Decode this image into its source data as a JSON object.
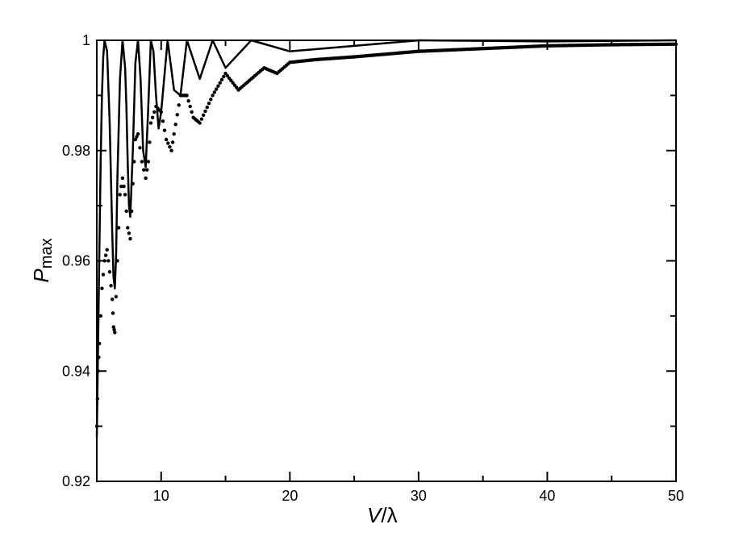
{
  "chart_data": {
    "type": "line",
    "xlabel": {
      "main": "V",
      "sep": "/",
      "symbol": "λ"
    },
    "ylabel": {
      "main": "P",
      "subscript": "max"
    },
    "xlim": [
      5,
      50
    ],
    "ylim": [
      0.92,
      1.0
    ],
    "xticks": [
      10,
      20,
      30,
      40,
      50
    ],
    "xtick_labels": [
      "10",
      "20",
      "30",
      "40",
      "50"
    ],
    "x_minor_ticks": [
      15,
      25,
      35,
      45
    ],
    "yticks": [
      0.92,
      0.94,
      0.96,
      0.98,
      1.0
    ],
    "ytick_labels": [
      "0.92",
      "0.94",
      "0.96",
      "0.98",
      "1"
    ],
    "y_minor_ticks": [
      0.93,
      0.95,
      0.97,
      0.99
    ],
    "grid": false,
    "legend": "none",
    "series": [
      {
        "style": "solid",
        "color": "#000000",
        "description": "oscillating curve touching 1 at maxima",
        "x": [
          5.0,
          5.1,
          5.2,
          5.3,
          5.4,
          5.5,
          5.6,
          5.8,
          6.0,
          6.1,
          6.2,
          6.3,
          6.4,
          6.5,
          6.6,
          6.8,
          7.0,
          7.2,
          7.3,
          7.4,
          7.5,
          7.6,
          7.8,
          8.0,
          8.2,
          8.4,
          8.6,
          8.8,
          9.0,
          9.2,
          9.4,
          9.6,
          9.8,
          10.0,
          10.5,
          11.0,
          11.5,
          12.0,
          13.0,
          14.0,
          15.0,
          17.0,
          20.0,
          25.0,
          30.0,
          40.0,
          50.0
        ],
        "y": [
          0.928,
          0.945,
          0.962,
          0.978,
          0.99,
          0.997,
          1.0,
          0.998,
          0.985,
          0.975,
          0.965,
          0.957,
          0.955,
          0.961,
          0.975,
          0.993,
          1.0,
          0.995,
          0.988,
          0.978,
          0.97,
          0.968,
          0.98,
          0.996,
          1.0,
          0.993,
          0.98,
          0.977,
          0.988,
          1.0,
          0.998,
          0.99,
          0.984,
          0.987,
          1.0,
          0.991,
          0.99,
          1.0,
          0.993,
          1.0,
          0.995,
          1.0,
          0.998,
          0.999,
          1.0,
          0.9998,
          1.0
        ]
      },
      {
        "style": "dotted",
        "color": "#000000",
        "description": "dotted envelope with lower minima",
        "x": [
          5.0,
          5.1,
          5.2,
          5.4,
          5.6,
          5.8,
          6.0,
          6.2,
          6.3,
          6.4,
          6.6,
          6.8,
          7.0,
          7.2,
          7.4,
          7.6,
          7.8,
          8.0,
          8.2,
          8.5,
          8.8,
          9.0,
          9.2,
          9.6,
          10.0,
          10.4,
          10.8,
          11.0,
          11.5,
          12.0,
          12.5,
          13.0,
          14.0,
          15.0,
          16.0,
          17.0,
          18.0,
          19.0,
          20.0,
          22.0,
          25.0,
          30.0,
          35.0,
          40.0,
          45.0,
          50.0
        ],
        "y": [
          0.93,
          0.94,
          0.945,
          0.955,
          0.96,
          0.962,
          0.958,
          0.953,
          0.948,
          0.947,
          0.96,
          0.972,
          0.975,
          0.972,
          0.966,
          0.964,
          0.974,
          0.982,
          0.983,
          0.978,
          0.975,
          0.978,
          0.985,
          0.988,
          0.987,
          0.982,
          0.98,
          0.983,
          0.99,
          0.99,
          0.986,
          0.985,
          0.99,
          0.994,
          0.991,
          0.993,
          0.995,
          0.994,
          0.996,
          0.9965,
          0.997,
          0.998,
          0.9985,
          0.999,
          0.9992,
          0.9993
        ]
      }
    ]
  }
}
